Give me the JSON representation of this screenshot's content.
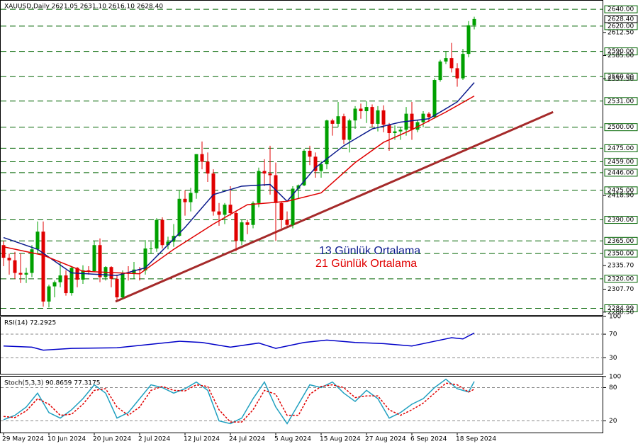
{
  "chart_data": [
    {
      "type": "candlestick",
      "title": "XAUUSD,Daily  2621.05 2631.10 2616.10 2628.40",
      "categories": [
        "29 May 2024",
        null,
        null,
        null,
        null,
        null,
        null,
        null,
        "10 Jun 2024",
        null,
        null,
        null,
        null,
        null,
        null,
        null,
        "20 Jun 2024",
        null,
        null,
        null,
        null,
        null,
        null,
        null,
        "2 Jul 2024",
        null,
        null,
        null,
        null,
        null,
        null,
        null,
        "12 Jul 2024",
        null,
        null,
        null,
        null,
        null,
        null,
        null,
        "24 Jul 2024",
        null,
        null,
        null,
        null,
        null,
        null,
        null,
        "5 Aug 2024",
        null,
        null,
        null,
        null,
        null,
        null,
        null,
        "15 Aug 2024",
        null,
        null,
        null,
        null,
        null,
        null,
        null,
        "27 Aug 2024",
        null,
        null,
        null,
        null,
        null,
        null,
        null,
        "6 Sep 2024",
        null,
        null,
        null,
        null,
        null,
        null,
        null,
        "18 Sep 2024",
        null,
        null,
        null
      ],
      "open": [
        2360,
        2345,
        2342,
        2327,
        2325,
        2327,
        2355,
        2376,
        2293,
        2311,
        2316,
        2324,
        2303,
        2333,
        2319,
        2330,
        2329,
        2360,
        2322,
        2334,
        2320,
        2298,
        2327,
        2326,
        2331,
        2330,
        2356,
        2356,
        2390,
        2360,
        2364,
        2371,
        2415,
        2411,
        2422,
        2468,
        2459,
        2445,
        2400,
        2396,
        2408,
        2398,
        2365,
        2387,
        2384,
        2410,
        2448,
        2445,
        2443,
        2410,
        2390,
        2384,
        2427,
        2431,
        2472,
        2465,
        2448,
        2456,
        2508,
        2504,
        2513,
        2485,
        2508,
        2522,
        2519,
        2524,
        2504,
        2520,
        2503,
        2493,
        2495,
        2497,
        2516,
        2497,
        2506,
        2516,
        2512,
        2556,
        2578,
        2582,
        2570,
        2558,
        2587,
        2621.05
      ],
      "high": [
        2365,
        2350,
        2352,
        2350,
        2333,
        2360,
        2388,
        2388,
        2313,
        2318,
        2340,
        2330,
        2335,
        2334,
        2336,
        2335,
        2365,
        2368,
        2335,
        2335,
        2325,
        2330,
        2335,
        2340,
        2334,
        2366,
        2364,
        2392,
        2393,
        2370,
        2385,
        2425,
        2425,
        2428,
        2468,
        2483,
        2470,
        2450,
        2410,
        2410,
        2430,
        2400,
        2390,
        2390,
        2412,
        2452,
        2462,
        2478,
        2458,
        2412,
        2400,
        2430,
        2432,
        2474,
        2478,
        2470,
        2460,
        2509,
        2510,
        2530,
        2516,
        2510,
        2525,
        2528,
        2531,
        2527,
        2525,
        2526,
        2505,
        2502,
        2500,
        2524,
        2530,
        2509,
        2519,
        2518,
        2558,
        2580,
        2590,
        2600,
        2576,
        2593,
        2626,
        2631.1
      ],
      "low": [
        2335,
        2325,
        2320,
        2315,
        2315,
        2322,
        2350,
        2287,
        2286,
        2298,
        2310,
        2300,
        2300,
        2310,
        2314,
        2325,
        2328,
        2316,
        2318,
        2310,
        2295,
        2296,
        2318,
        2320,
        2318,
        2325,
        2350,
        2352,
        2356,
        2355,
        2358,
        2370,
        2395,
        2400,
        2415,
        2450,
        2435,
        2395,
        2383,
        2385,
        2395,
        2353,
        2360,
        2373,
        2380,
        2405,
        2430,
        2420,
        2365,
        2380,
        2382,
        2380,
        2415,
        2430,
        2455,
        2440,
        2440,
        2450,
        2490,
        2500,
        2480,
        2470,
        2498,
        2510,
        2505,
        2500,
        2495,
        2494,
        2472,
        2485,
        2485,
        2490,
        2485,
        2494,
        2500,
        2506,
        2510,
        2554,
        2575,
        2565,
        2548,
        2556,
        2583,
        2616.1
      ],
      "close": [
        2345,
        2342,
        2327,
        2325,
        2327,
        2355,
        2376,
        2293,
        2311,
        2316,
        2324,
        2303,
        2333,
        2319,
        2330,
        2329,
        2360,
        2322,
        2334,
        2320,
        2298,
        2327,
        2326,
        2331,
        2330,
        2356,
        2356,
        2390,
        2360,
        2364,
        2371,
        2415,
        2411,
        2422,
        2468,
        2459,
        2445,
        2400,
        2396,
        2408,
        2398,
        2365,
        2387,
        2384,
        2410,
        2448,
        2445,
        2443,
        2410,
        2390,
        2384,
        2427,
        2431,
        2472,
        2465,
        2448,
        2456,
        2508,
        2504,
        2513,
        2485,
        2508,
        2522,
        2519,
        2524,
        2504,
        2520,
        2503,
        2493,
        2495,
        2497,
        2516,
        2497,
        2506,
        2516,
        2512,
        2556,
        2578,
        2582,
        2570,
        2558,
        2587,
        2621,
        2628.4
      ],
      "up_color": "#00a000",
      "down_color": "#e00000",
      "ylim": [
        2277,
        2651
      ],
      "yticks": [
        {
          "value": 2612.5,
          "label": "2612.50"
        },
        {
          "value": 2585,
          "label": "2585.00"
        },
        {
          "value": 2557.5,
          "label": "2557.50"
        },
        {
          "value": 2418.9,
          "label": "2418.90"
        },
        {
          "value": 2335.7,
          "label": "2335.70"
        },
        {
          "value": 2307.7,
          "label": "2307.70"
        },
        {
          "value": 2280.5,
          "label": "2280.50"
        }
      ],
      "levels": [
        {
          "value": 2640,
          "label": "2640.00"
        },
        {
          "value": 2620,
          "label": "2620.00"
        },
        {
          "value": 2590,
          "label": "2590.00"
        },
        {
          "value": 2560,
          "label": "2560.00"
        },
        {
          "value": 2531,
          "label": "2531.00"
        },
        {
          "value": 2500,
          "label": "2500.00"
        },
        {
          "value": 2475,
          "label": "2475.00"
        },
        {
          "value": 2459,
          "label": "2459.00"
        },
        {
          "value": 2446,
          "label": "2446.00"
        },
        {
          "value": 2425,
          "label": "2425.00"
        },
        {
          "value": 2390,
          "label": "2390.00"
        },
        {
          "value": 2365,
          "label": "2365.00"
        },
        {
          "value": 2350,
          "label": "2350.00"
        },
        {
          "value": 2320,
          "label": "2320.00"
        },
        {
          "value": 2284.99,
          "label": "2284.99"
        }
      ],
      "level_color": "#006400",
      "current": {
        "value": 2628.4,
        "label": "2628.40"
      },
      "series": [
        {
          "name": "13 Günlük Ortalama",
          "color": "#0a1a8c",
          "x": [
            0,
            6,
            12,
            20,
            25,
            32,
            37,
            42,
            47,
            50,
            55,
            60,
            65,
            70,
            75,
            80,
            83
          ],
          "values": [
            2369,
            2355,
            2327,
            2324,
            2333,
            2381,
            2420,
            2430,
            2432,
            2412,
            2452,
            2478,
            2498,
            2506,
            2510,
            2530,
            2553
          ]
        },
        {
          "name": "21 Günlük Ortalama",
          "color": "#e00000",
          "x": [
            0,
            7,
            14,
            24,
            30,
            37,
            43,
            50,
            56,
            62,
            67,
            72,
            78,
            83
          ],
          "values": [
            2358,
            2348,
            2329,
            2326,
            2355,
            2385,
            2408,
            2412,
            2422,
            2458,
            2482,
            2497,
            2518,
            2537
          ]
        }
      ],
      "trendline": {
        "color": "#a52a2a",
        "x": [
          19.75,
          96.9
        ],
        "values": [
          2293,
          2518
        ]
      }
    },
    {
      "type": "line",
      "title": "RSI(14) 72.2925",
      "color": "#0000c8",
      "x": [
        0,
        5,
        7,
        12,
        20,
        25,
        31,
        35,
        40,
        45,
        48,
        53,
        57,
        62,
        67,
        72,
        76,
        79,
        81,
        83
      ],
      "values": [
        50,
        48,
        43,
        46,
        47,
        52,
        58,
        56,
        48,
        55,
        46,
        56,
        60,
        56,
        54,
        50,
        58,
        64,
        62,
        72
      ],
      "ylim": [
        3,
        100
      ],
      "yticks": [
        100,
        70,
        30
      ],
      "levels": [
        70,
        30
      ]
    },
    {
      "type": "line",
      "title": "Stoch(5,3,3) 90.8659 77.3175",
      "ylim": [
        -1,
        101
      ],
      "yticks": [
        100,
        80,
        20
      ],
      "levels": [
        80,
        20
      ],
      "series": [
        {
          "color": "#20a0c0",
          "dash": false,
          "x": [
            0,
            2,
            4,
            6,
            8,
            10,
            12,
            14,
            16,
            18,
            20,
            22,
            24,
            26,
            28,
            30,
            32,
            34,
            36,
            38,
            40,
            42,
            44,
            46,
            48,
            50,
            52,
            54,
            56,
            58,
            60,
            62,
            64,
            66,
            68,
            70,
            72,
            74,
            76,
            78,
            80,
            82,
            83
          ],
          "values": [
            22,
            30,
            45,
            70,
            35,
            25,
            40,
            60,
            85,
            70,
            25,
            35,
            60,
            85,
            80,
            70,
            78,
            90,
            75,
            20,
            15,
            25,
            60,
            90,
            45,
            15,
            50,
            85,
            80,
            90,
            70,
            55,
            75,
            60,
            25,
            35,
            50,
            60,
            80,
            95,
            78,
            72,
            91
          ]
        },
        {
          "color": "#e00000",
          "dash": true,
          "x": [
            0,
            2,
            4,
            6,
            8,
            10,
            12,
            14,
            16,
            18,
            20,
            22,
            24,
            26,
            28,
            30,
            32,
            34,
            36,
            38,
            40,
            42,
            44,
            46,
            48,
            50,
            52,
            54,
            56,
            58,
            60,
            62,
            64,
            66,
            68,
            70,
            72,
            74,
            76,
            78,
            80,
            82,
            83
          ],
          "values": [
            28,
            26,
            38,
            60,
            50,
            30,
            32,
            50,
            75,
            78,
            45,
            30,
            45,
            75,
            82,
            75,
            74,
            85,
            82,
            40,
            18,
            18,
            40,
            75,
            68,
            30,
            30,
            68,
            82,
            85,
            80,
            62,
            65,
            65,
            40,
            30,
            40,
            52,
            70,
            88,
            85,
            72,
            77
          ]
        }
      ]
    }
  ]
}
